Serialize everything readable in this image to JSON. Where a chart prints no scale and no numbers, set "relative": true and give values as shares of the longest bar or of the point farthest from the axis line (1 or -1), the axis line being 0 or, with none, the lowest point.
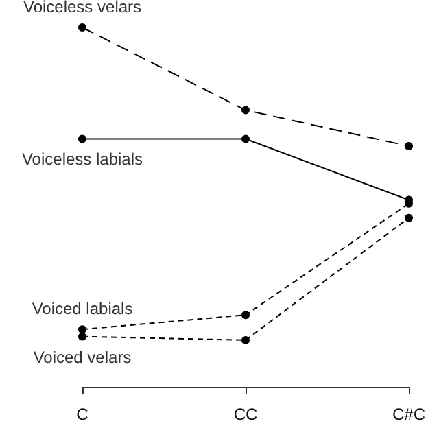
{
  "chart_data": {
    "type": "line",
    "relative": true,
    "categories": [
      "C",
      "CC",
      "C#C"
    ],
    "marker": "circle",
    "legend": false,
    "grid": false,
    "series": [
      {
        "name": "Voiceless velars",
        "color": "#000000",
        "line_style": "dashed",
        "values": [
          1,
          0.77,
          0.67
        ]
      },
      {
        "name": "Voiceless labials",
        "color": "#000000",
        "line_style": "solid",
        "values": [
          0.69,
          0.69,
          0.52
        ]
      },
      {
        "name": "Voiced labials",
        "color": "#000000",
        "line_style": "dotted",
        "values": [
          0.16,
          0.2,
          0.51
        ]
      },
      {
        "name": "Voiced velars",
        "color": "#000000",
        "line_style": "dotted",
        "values": [
          0.14,
          0.13,
          0.47
        ]
      }
    ]
  }
}
